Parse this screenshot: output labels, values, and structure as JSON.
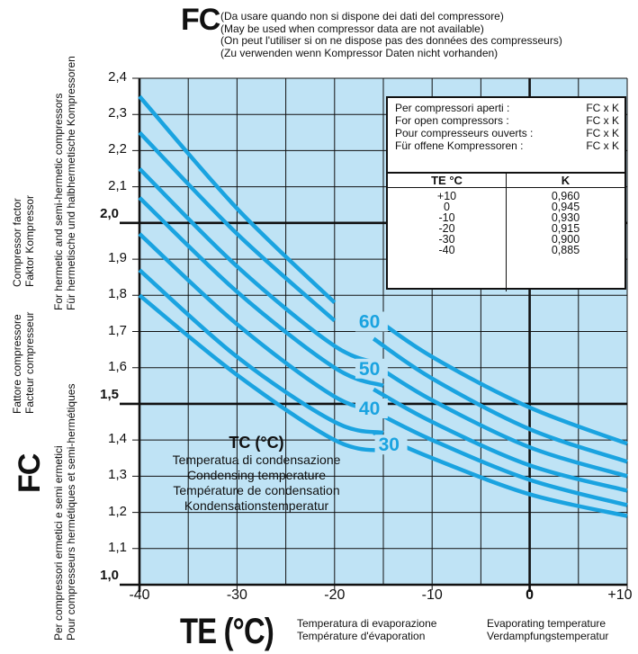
{
  "header": {
    "fc_symbol": "FC",
    "notes": [
      "(Da usare quando non si dispone dei dati del compressore)",
      "(May be used when compressor data are not available)",
      "(On peut l'utiliser si on ne dispose pas des données des compresseurs)",
      "(Zu verwenden wenn Kompressor Daten nicht vorhanden)"
    ]
  },
  "y_axis": {
    "symbol": "FC",
    "labels": [
      "Compressor factor",
      "Faktor Kompressor",
      "For hermetic and semi-hermetic compressors",
      "Für hermetische und halbhermetische Kompressoren",
      "Fattore compressore",
      "Facteur compresseur",
      "Per compressori ermetici e semi ermetici",
      "Pour compresseurs hermétiques et semi-hermétiques"
    ]
  },
  "x_axis": {
    "symbol": "TE (°C)",
    "labels": [
      "Temperatura di evaporazione",
      "Température d'évaporation",
      "Evaporating temperature",
      "Verdampfungstemperatur"
    ]
  },
  "tc_legend": {
    "title": "TC (°C)",
    "lines": [
      "Temperatua di condensazione",
      "Condensing temperature",
      "Température de condensation",
      "Kondensationstemperatur"
    ]
  },
  "info_box": {
    "rows": [
      {
        "label": "Per compressori aperti :",
        "value": "FC x K"
      },
      {
        "label": "For open compressors :",
        "value": "FC x K"
      },
      {
        "label": "Pour compresseurs ouverts :",
        "value": "FC x K"
      },
      {
        "label": "Für offene Kompressoren :",
        "value": "FC x K"
      }
    ],
    "table_headers": [
      "TE °C",
      "K"
    ],
    "table_te": [
      "+10",
      "0",
      "-10",
      "-20",
      "-30",
      "-40"
    ],
    "table_k": [
      "0,960",
      "0,945",
      "0,930",
      "0,915",
      "0,900",
      "0,885"
    ]
  },
  "chart_data": {
    "type": "line",
    "xlim": [
      -40,
      10
    ],
    "ylim": [
      1.0,
      2.4
    ],
    "x_ticks": [
      "-40",
      "-30",
      "-20",
      "-10",
      "0",
      "+10"
    ],
    "y_ticks": [
      "1,0",
      "1,1",
      "1,2",
      "1,3",
      "1,4",
      "1,5",
      "1,6",
      "1,7",
      "1,8",
      "1,9",
      "2,0",
      "2,1",
      "2,2",
      "2,3",
      "2,4"
    ],
    "bold_y_ticks": [
      "1,0",
      "1,5",
      "2,0"
    ],
    "bold_x_ticks": [
      "0"
    ],
    "grid": true,
    "background_color": "#bfe3f5",
    "curve_color": "#1aa3e0",
    "series": [
      {
        "x": [
          -40,
          -30,
          -20
        ],
        "y": [
          2.35,
          2.04,
          1.78
        ]
      },
      {
        "x": [
          -40,
          -30,
          -20
        ],
        "y": [
          2.25,
          1.97,
          1.73
        ]
      },
      {
        "x": [
          -40,
          -30,
          -20,
          -15
        ],
        "y": [
          2.15,
          1.88,
          1.66,
          1.61
        ]
      },
      {
        "x": [
          -40,
          -30,
          -20,
          -15
        ],
        "y": [
          2.07,
          1.81,
          1.6,
          1.55
        ]
      },
      {
        "x": [
          -40,
          -30,
          -20,
          -15
        ],
        "y": [
          1.97,
          1.72,
          1.52,
          1.48
        ]
      },
      {
        "x": [
          -40,
          -30,
          -20,
          -15
        ],
        "y": [
          1.87,
          1.63,
          1.45,
          1.42
        ]
      },
      {
        "x": [
          -40,
          -30,
          -20,
          -15
        ],
        "y": [
          1.8,
          1.58,
          1.4,
          1.37
        ]
      },
      {
        "x": [
          -16,
          -10,
          0,
          10
        ],
        "y": [
          1.74,
          1.63,
          1.49,
          1.39
        ]
      },
      {
        "x": [
          -16,
          -10,
          0,
          10
        ],
        "y": [
          1.68,
          1.57,
          1.43,
          1.34
        ]
      },
      {
        "x": [
          -16,
          -10,
          0,
          10
        ],
        "y": [
          1.61,
          1.51,
          1.38,
          1.3
        ]
      },
      {
        "x": [
          -16,
          -10,
          0,
          10
        ],
        "y": [
          1.54,
          1.45,
          1.33,
          1.26
        ]
      },
      {
        "x": [
          -16,
          -10,
          0,
          10
        ],
        "y": [
          1.48,
          1.4,
          1.29,
          1.22
        ]
      },
      {
        "x": [
          -16,
          -10,
          0,
          10
        ],
        "y": [
          1.42,
          1.35,
          1.25,
          1.19
        ]
      }
    ],
    "curve_labels": [
      {
        "text": "60",
        "x": -17.5,
        "y": 1.71
      },
      {
        "text": "50",
        "x": -17.5,
        "y": 1.58
      },
      {
        "text": "40",
        "x": -17.5,
        "y": 1.47
      },
      {
        "text": "30",
        "x": -15.5,
        "y": 1.37
      }
    ]
  }
}
